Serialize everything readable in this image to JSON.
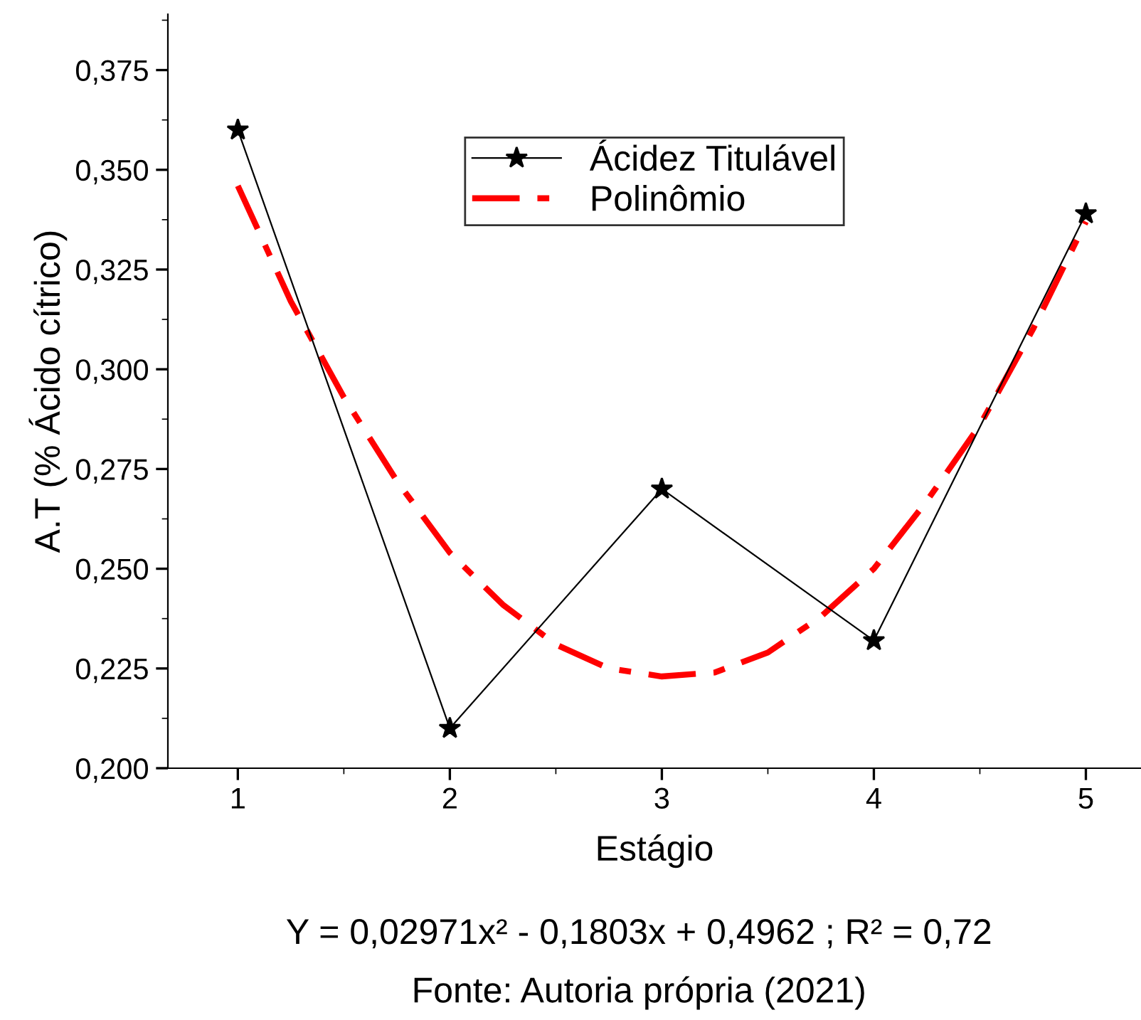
{
  "chart_data": {
    "type": "line",
    "xlabel": "Estágio",
    "ylabel": "A.T (% Ácido cítrico)",
    "annotations": [
      "Y = 0,02971x² - 0,1803x + 0,4962 ; R² = 0,72",
      "Fonte: Autoria própria (2021)"
    ],
    "x": [
      1,
      2,
      3,
      4,
      5
    ],
    "series": [
      {
        "name": "Ácidez Titulável",
        "color": "#000000",
        "marker": "star",
        "line_style": "solid",
        "values": [
          0.36,
          0.21,
          0.27,
          0.232,
          0.339
        ]
      },
      {
        "name": "Polinômio",
        "color": "#ff0000",
        "marker": "none",
        "line_style": "dashdot",
        "x": [
          1,
          1.25,
          1.5,
          1.75,
          2,
          2.25,
          2.5,
          2.75,
          3,
          3.25,
          3.5,
          3.75,
          4,
          4.25,
          4.5,
          4.75,
          5
        ],
        "values": [
          0.346,
          0.317,
          0.293,
          0.272,
          0.254,
          0.241,
          0.231,
          0.225,
          0.223,
          0.224,
          0.229,
          0.238,
          0.25,
          0.267,
          0.286,
          0.31,
          0.337
        ]
      }
    ],
    "xlim": [
      0.67,
      5.26
    ],
    "xticks": [
      1,
      2,
      3,
      4,
      5
    ],
    "ylim": [
      0.2,
      0.389
    ],
    "yticks": [
      {
        "value": 0.2,
        "label": "0,200"
      },
      {
        "value": 0.225,
        "label": "0,225"
      },
      {
        "value": 0.25,
        "label": "0,250"
      },
      {
        "value": 0.275,
        "label": "0,275"
      },
      {
        "value": 0.3,
        "label": "0,300"
      },
      {
        "value": 0.325,
        "label": "0,325"
      },
      {
        "value": 0.35,
        "label": "0,350"
      },
      {
        "value": 0.375,
        "label": "0,375"
      }
    ],
    "grid": false,
    "legend": "top"
  }
}
